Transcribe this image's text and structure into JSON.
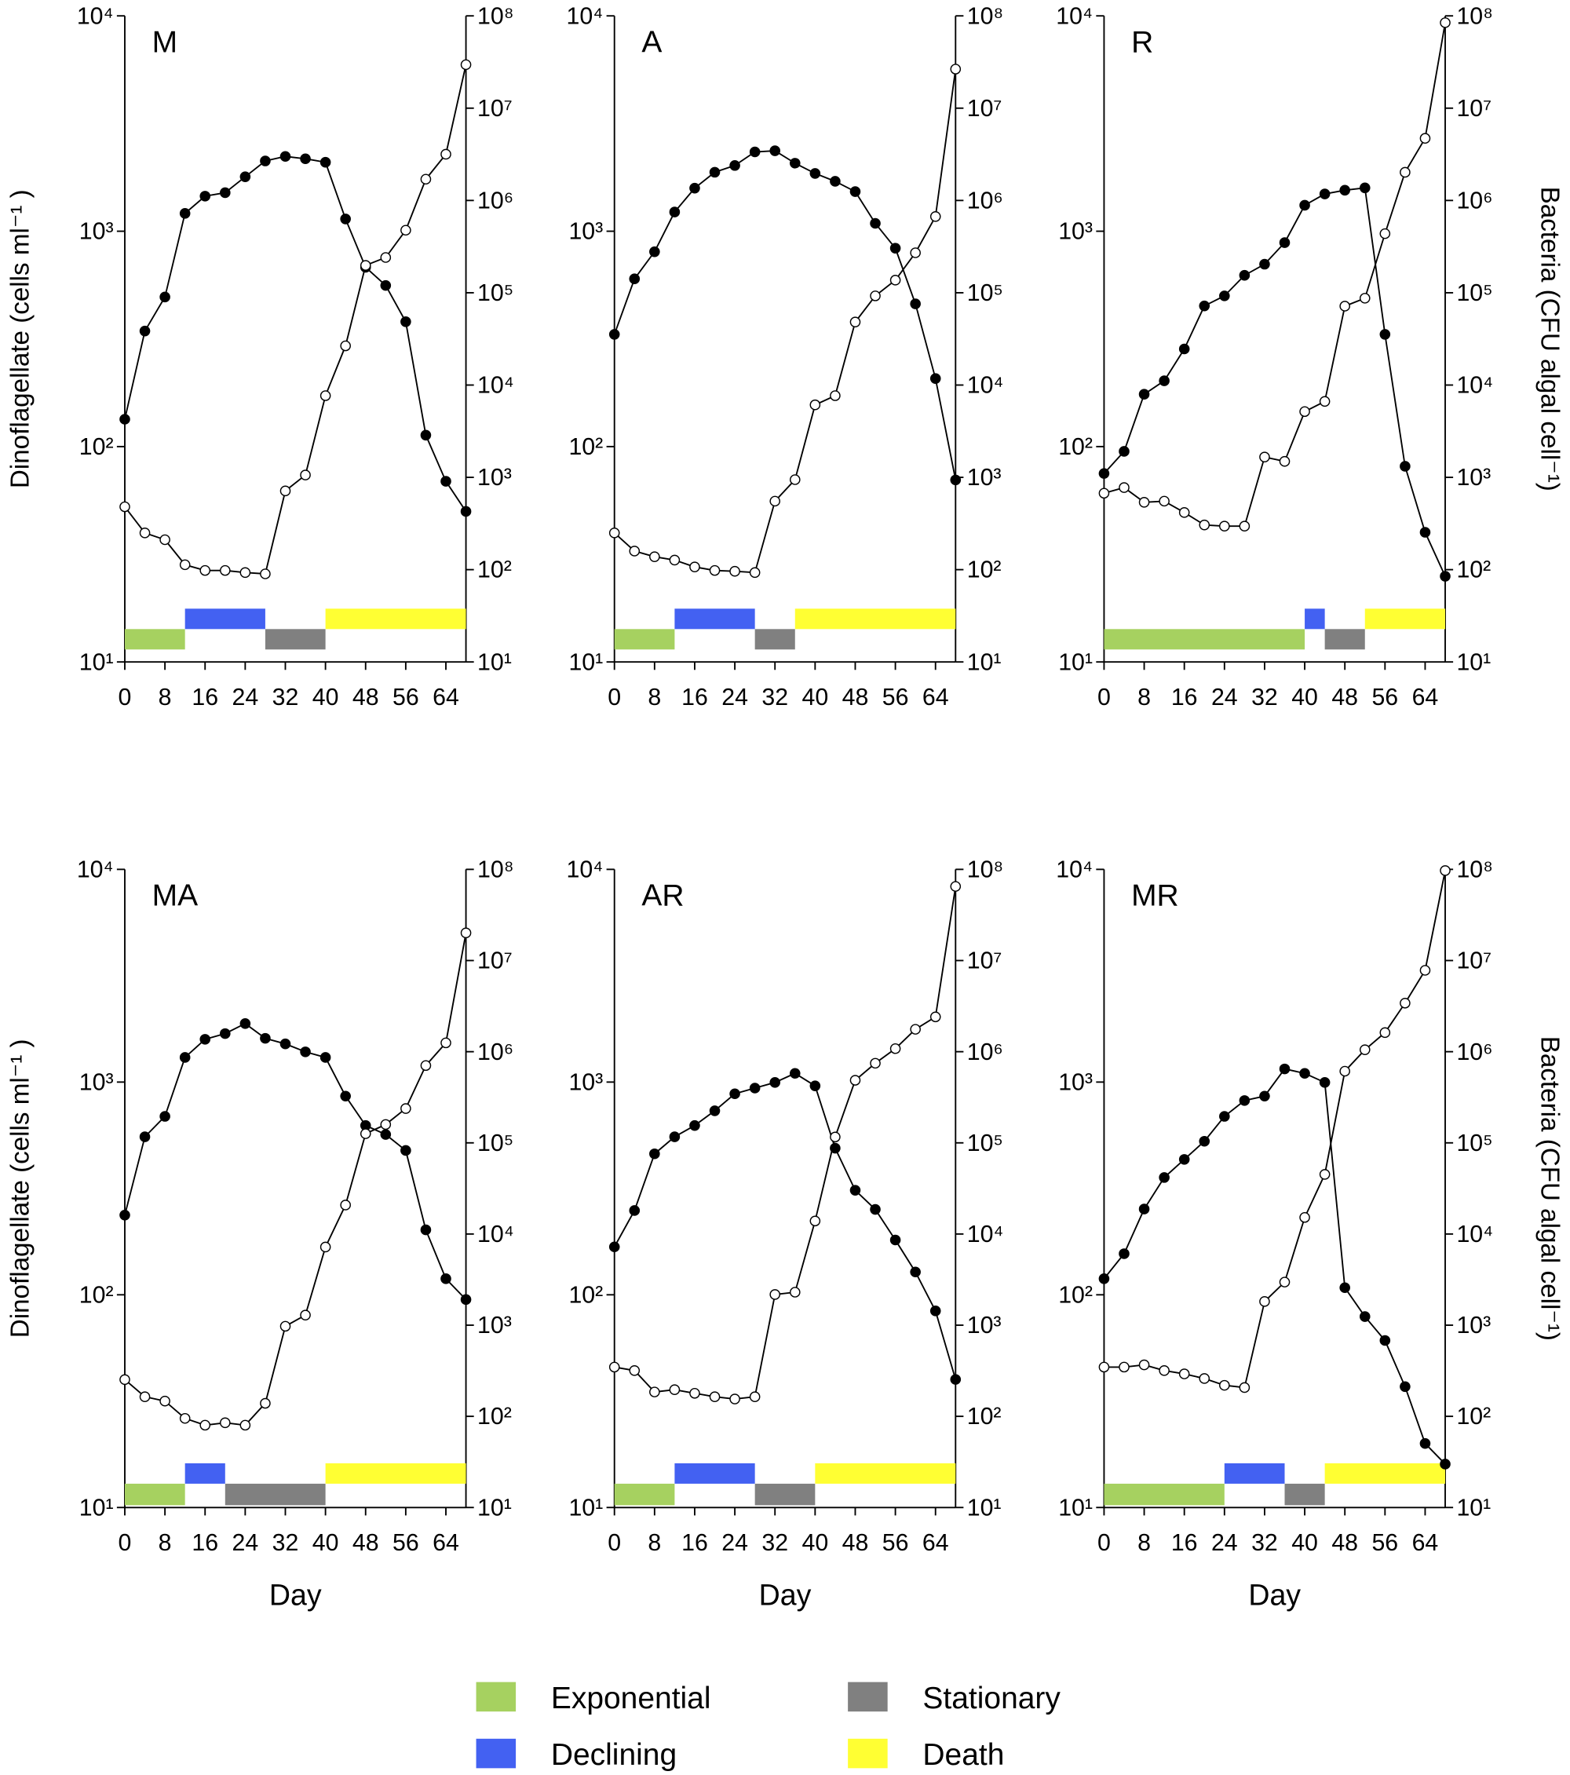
{
  "chart_data": [
    {
      "type": "line",
      "title": "M",
      "ylabel": "Dinoflagellate (cells ml⁻¹ )",
      "x": [
        0,
        4,
        8,
        12,
        16,
        20,
        24,
        28,
        32,
        36,
        40,
        44,
        48,
        52,
        56,
        60,
        64,
        68
      ],
      "xlim": [
        0,
        68
      ],
      "xticks": [
        0,
        8,
        16,
        24,
        32,
        40,
        48,
        56,
        64
      ],
      "log_y": true,
      "ylim": [
        10,
        10000
      ],
      "yticks": [
        {
          "value": 10,
          "label": "10¹"
        },
        {
          "value": 100,
          "label": "10²"
        },
        {
          "value": 1000,
          "label": "10³"
        },
        {
          "value": 10000,
          "label": "10⁴"
        }
      ],
      "y2lim": [
        10,
        100000000
      ],
      "y2ticks": [
        {
          "value": 10,
          "label": "10¹"
        },
        {
          "value": 100,
          "label": "10²"
        },
        {
          "value": 1000,
          "label": "10³"
        },
        {
          "value": 10000,
          "label": "10⁴"
        },
        {
          "value": 100000,
          "label": "10⁵"
        },
        {
          "value": 1000000,
          "label": "10⁶"
        },
        {
          "value": 10000000,
          "label": "10⁷"
        },
        {
          "value": 100000000,
          "label": "10⁸"
        }
      ],
      "series": [
        {
          "color": "#000000",
          "marker": "filled",
          "values": [
            134,
            344,
            495,
            1210,
            1455,
            1510,
            1790,
            2120,
            2225,
            2170,
            2090,
            1140,
            680,
            560,
            380,
            113,
            69,
            50
          ]
        },
        {
          "color": "#000000",
          "marker": "open",
          "axis": "y2",
          "values": [
            480,
            250,
            211,
            113,
            98,
            98,
            93,
            90,
            713,
            1060,
            7670,
            26600,
            198000,
            241000,
            476000,
            1700000,
            3170000,
            29600000
          ]
        }
      ],
      "phases": [
        {
          "phase": 0,
          "start": 0,
          "end": 12
        },
        {
          "phase": 1,
          "start": 12,
          "end": 28
        },
        {
          "phase": 2,
          "start": 28,
          "end": 40
        },
        {
          "phase": 3,
          "start": 40,
          "end": 68
        }
      ]
    },
    {
      "type": "line",
      "title": "A",
      "x": [
        0,
        4,
        8,
        12,
        16,
        20,
        24,
        28,
        32,
        36,
        40,
        44,
        48,
        52,
        56,
        60,
        64,
        68
      ],
      "xlim": [
        0,
        68
      ],
      "xticks": [
        0,
        8,
        16,
        24,
        32,
        40,
        48,
        56,
        64
      ],
      "log_y": true,
      "ylim": [
        10,
        10000
      ],
      "yticks": [
        {
          "value": 10,
          "label": "10¹"
        },
        {
          "value": 100,
          "label": "10²"
        },
        {
          "value": 1000,
          "label": "10³"
        },
        {
          "value": 10000,
          "label": "10⁴"
        }
      ],
      "y2lim": [
        10,
        100000000
      ],
      "y2ticks": [
        {
          "value": 10,
          "label": "10¹"
        },
        {
          "value": 100,
          "label": "10²"
        },
        {
          "value": 1000,
          "label": "10³"
        },
        {
          "value": 10000,
          "label": "10⁴"
        },
        {
          "value": 100000,
          "label": "10⁵"
        },
        {
          "value": 1000000,
          "label": "10⁶"
        },
        {
          "value": 10000000,
          "label": "10⁷"
        },
        {
          "value": 100000000,
          "label": "10⁸"
        }
      ],
      "series": [
        {
          "color": "#000000",
          "marker": "filled",
          "values": [
            332,
            601,
            803,
            1228,
            1585,
            1879,
            2020,
            2335,
            2364,
            2070,
            1855,
            1705,
            1528,
            1088,
            834,
            460,
            207,
            70
          ]
        },
        {
          "color": "#000000",
          "marker": "open",
          "axis": "y2",
          "values": [
            250,
            159,
            138,
            127,
            107,
            98,
            96,
            93,
            552,
            944,
            6100,
            7670,
            48200,
            92500,
            137000,
            271000,
            670000,
            26500000
          ]
        }
      ],
      "phases": [
        {
          "phase": 0,
          "start": 0,
          "end": 12
        },
        {
          "phase": 1,
          "start": 12,
          "end": 28
        },
        {
          "phase": 2,
          "start": 28,
          "end": 36
        },
        {
          "phase": 3,
          "start": 36,
          "end": 68
        }
      ]
    },
    {
      "type": "line",
      "title": "R",
      "y2label": "Bacteria (CFU algal cell⁻¹)",
      "x": [
        0,
        4,
        8,
        12,
        16,
        20,
        24,
        28,
        32,
        36,
        40,
        44,
        48,
        52,
        56,
        60,
        64,
        68
      ],
      "xlim": [
        0,
        68
      ],
      "xticks": [
        0,
        8,
        16,
        24,
        32,
        40,
        48,
        56,
        64
      ],
      "log_y": true,
      "ylim": [
        10,
        10000
      ],
      "yticks": [
        {
          "value": 10,
          "label": "10¹"
        },
        {
          "value": 100,
          "label": "10²"
        },
        {
          "value": 1000,
          "label": "10³"
        },
        {
          "value": 10000,
          "label": "10⁴"
        }
      ],
      "y2lim": [
        10,
        100000000
      ],
      "y2ticks": [
        {
          "value": 10,
          "label": "10¹"
        },
        {
          "value": 100,
          "label": "10²"
        },
        {
          "value": 1000,
          "label": "10³"
        },
        {
          "value": 10000,
          "label": "10⁴"
        },
        {
          "value": 100000,
          "label": "10⁵"
        },
        {
          "value": 1000000,
          "label": "10⁶"
        },
        {
          "value": 10000000,
          "label": "10⁷"
        },
        {
          "value": 100000000,
          "label": "10⁸"
        }
      ],
      "series": [
        {
          "color": "#000000",
          "marker": "filled",
          "values": [
            75,
            95,
            175,
            202,
            284,
            450,
            501,
            624,
            703,
            885,
            1320,
            1490,
            1550,
            1590,
            332,
            81,
            40,
            25
          ]
        },
        {
          "color": "#000000",
          "marker": "open",
          "axis": "y2",
          "values": [
            673,
            775,
            537,
            552,
            416,
            305,
            296,
            296,
            1660,
            1490,
            5160,
            6650,
            71600,
            87300,
            437000,
            2020000,
            4710000,
            84400000
          ]
        }
      ],
      "phases": [
        {
          "phase": 0,
          "start": 0,
          "end": 40
        },
        {
          "phase": 1,
          "start": 40,
          "end": 44
        },
        {
          "phase": 2,
          "start": 44,
          "end": 52
        },
        {
          "phase": 3,
          "start": 52,
          "end": 68
        }
      ]
    },
    {
      "type": "line",
      "title": "MA",
      "ylabel": "Dinoflagellate (cells ml⁻¹ )",
      "xlabel": "Day",
      "x": [
        0,
        4,
        8,
        12,
        16,
        20,
        24,
        28,
        32,
        36,
        40,
        44,
        48,
        52,
        56,
        60,
        64,
        68
      ],
      "xlim": [
        0,
        68
      ],
      "xticks": [
        0,
        8,
        16,
        24,
        32,
        40,
        48,
        56,
        64
      ],
      "log_y": true,
      "ylim": [
        10,
        10000
      ],
      "yticks": [
        {
          "value": 10,
          "label": "10¹"
        },
        {
          "value": 100,
          "label": "10²"
        },
        {
          "value": 1000,
          "label": "10³"
        },
        {
          "value": 10000,
          "label": "10⁴"
        }
      ],
      "y2lim": [
        10,
        100000000
      ],
      "y2ticks": [
        {
          "value": 10,
          "label": "10¹"
        },
        {
          "value": 100,
          "label": "10²"
        },
        {
          "value": 1000,
          "label": "10³"
        },
        {
          "value": 10000,
          "label": "10⁴"
        },
        {
          "value": 100000,
          "label": "10⁵"
        },
        {
          "value": 1000000,
          "label": "10⁶"
        },
        {
          "value": 10000000,
          "label": "10⁷"
        },
        {
          "value": 100000000,
          "label": "10⁸"
        }
      ],
      "series": [
        {
          "color": "#000000",
          "marker": "filled",
          "values": [
            237,
            553,
            690,
            1306,
            1589,
            1690,
            1884,
            1606,
            1512,
            1387,
            1306,
            859,
            625,
            567,
            477,
            202,
            119,
            95
          ]
        },
        {
          "color": "#000000",
          "marker": "open",
          "axis": "y2",
          "values": [
            253,
            164,
            147,
            95,
            80,
            85,
            80,
            139,
            973,
            1290,
            7200,
            20800,
            126000,
            159000,
            238000,
            705000,
            1250000,
            20100000
          ]
        }
      ],
      "phases": [
        {
          "phase": 0,
          "start": 0,
          "end": 12
        },
        {
          "phase": 1,
          "start": 12,
          "end": 20
        },
        {
          "phase": 2,
          "start": 20,
          "end": 40
        },
        {
          "phase": 3,
          "start": 40,
          "end": 68
        }
      ]
    },
    {
      "type": "line",
      "title": "AR",
      "xlabel": "Day",
      "x": [
        0,
        4,
        8,
        12,
        16,
        20,
        24,
        28,
        32,
        36,
        40,
        44,
        48,
        52,
        56,
        60,
        64,
        68
      ],
      "xlim": [
        0,
        68
      ],
      "xticks": [
        0,
        8,
        16,
        24,
        32,
        40,
        48,
        56,
        64
      ],
      "log_y": true,
      "ylim": [
        10,
        10000
      ],
      "yticks": [
        {
          "value": 10,
          "label": "10¹"
        },
        {
          "value": 100,
          "label": "10²"
        },
        {
          "value": 1000,
          "label": "10³"
        },
        {
          "value": 10000,
          "label": "10⁴"
        }
      ],
      "y2lim": [
        10,
        100000000
      ],
      "y2ticks": [
        {
          "value": 10,
          "label": "10¹"
        },
        {
          "value": 100,
          "label": "10²"
        },
        {
          "value": 1000,
          "label": "10³"
        },
        {
          "value": 10000,
          "label": "10⁴"
        },
        {
          "value": 100000,
          "label": "10⁵"
        },
        {
          "value": 1000000,
          "label": "10⁶"
        },
        {
          "value": 10000000,
          "label": "10⁷"
        },
        {
          "value": 100000000,
          "label": "10⁸"
        }
      ],
      "series": [
        {
          "color": "#000000",
          "marker": "filled",
          "values": [
            168,
            249,
            460,
            553,
            625,
            733,
            881,
            937,
            996,
            1099,
            960,
            489,
            310,
            252,
            181,
            128,
            84,
            40
          ]
        },
        {
          "color": "#000000",
          "marker": "open",
          "axis": "y2",
          "values": [
            347,
            318,
            185,
            196,
            179,
            164,
            155,
            164,
            2170,
            2300,
            13900,
            116000,
            486000,
            747000,
            1080000,
            1760000,
            2410000,
            65000000
          ]
        }
      ],
      "phases": [
        {
          "phase": 0,
          "start": 0,
          "end": 12
        },
        {
          "phase": 1,
          "start": 12,
          "end": 28
        },
        {
          "phase": 2,
          "start": 28,
          "end": 40
        },
        {
          "phase": 3,
          "start": 40,
          "end": 68
        }
      ]
    },
    {
      "type": "line",
      "title": "MR",
      "xlabel": "Day",
      "y2label": "Bacteria (CFU algal cell⁻¹)",
      "x": [
        0,
        4,
        8,
        12,
        16,
        20,
        24,
        28,
        32,
        36,
        40,
        44,
        48,
        52,
        56,
        60,
        64,
        68
      ],
      "xlim": [
        0,
        68
      ],
      "xticks": [
        0,
        8,
        16,
        24,
        32,
        40,
        48,
        56,
        64
      ],
      "log_y": true,
      "ylim": [
        10,
        10000
      ],
      "yticks": [
        {
          "value": 10,
          "label": "10¹"
        },
        {
          "value": 100,
          "label": "10²"
        },
        {
          "value": 1000,
          "label": "10³"
        },
        {
          "value": 10000,
          "label": "10⁴"
        }
      ],
      "y2lim": [
        10,
        100000000
      ],
      "y2ticks": [
        {
          "value": 10,
          "label": "10¹"
        },
        {
          "value": 100,
          "label": "10²"
        },
        {
          "value": 1000,
          "label": "10³"
        },
        {
          "value": 10000,
          "label": "10⁴"
        },
        {
          "value": 100000,
          "label": "10⁵"
        },
        {
          "value": 1000000,
          "label": "10⁶"
        },
        {
          "value": 10000000,
          "label": "10⁷"
        },
        {
          "value": 100000000,
          "label": "10⁸"
        }
      ],
      "series": [
        {
          "color": "#000000",
          "marker": "filled",
          "values": [
            119,
            156,
            253,
            356,
            433,
            527,
            690,
            819,
            859,
            1153,
            1099,
            996,
            108,
            79,
            61,
            37,
            20,
            16
          ]
        },
        {
          "color": "#000000",
          "marker": "open",
          "axis": "y2",
          "values": [
            347,
            347,
            367,
            318,
            292,
            260,
            219,
            207,
            1820,
            2970,
            15200,
            45100,
            611000,
            1050000,
            1620000,
            3410000,
            7810000,
            97000000
          ]
        }
      ],
      "phases": [
        {
          "phase": 0,
          "start": 0,
          "end": 24
        },
        {
          "phase": 1,
          "start": 24,
          "end": 36
        },
        {
          "phase": 2,
          "start": 36,
          "end": 44
        },
        {
          "phase": 3,
          "start": 44,
          "end": 68
        }
      ]
    }
  ],
  "phase_legend": [
    {
      "name": "Exponential",
      "color": "#a6d160"
    },
    {
      "name": "Declining",
      "color": "#4361f2"
    },
    {
      "name": "Stationary",
      "color": "#808080"
    },
    {
      "name": "Death",
      "color": "#ffff33"
    }
  ]
}
